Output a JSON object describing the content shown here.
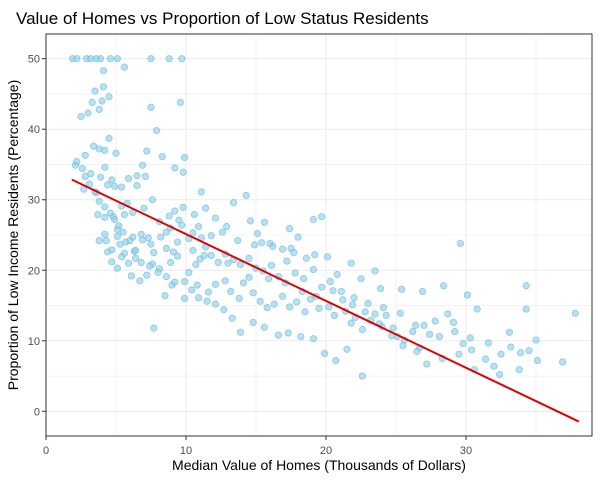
{
  "chart_data": {
    "type": "scatter",
    "title": "Value of Homes vs Proportion of Low Status Residents",
    "xlabel": "Median Value of Homes (Thousands of Dollars)",
    "ylabel": "Proportion of Low Income Residents (Percentage)",
    "xlim": [
      0,
      39
    ],
    "ylim": [
      -3.5,
      53.5
    ],
    "x_ticks": [
      0,
      10,
      20,
      30
    ],
    "y_ticks": [
      0,
      10,
      20,
      30,
      40,
      50
    ],
    "grid": true,
    "legend": "none",
    "colors": {
      "points": "#87CEEB",
      "points_stroke": "#6fb7da",
      "trend": "#dd0000",
      "grid": "#ebebeb",
      "panel_border": "#333333",
      "text": "#000000",
      "tick_text": "#4d4d4d"
    },
    "series": [
      {
        "type": "scatter",
        "points": [
          [
            1.9,
            50
          ],
          [
            2.2,
            50
          ],
          [
            2.9,
            50
          ],
          [
            3.2,
            50
          ],
          [
            3.6,
            50
          ],
          [
            3.9,
            50
          ],
          [
            4.6,
            50
          ],
          [
            5.1,
            50
          ],
          [
            7.5,
            50
          ],
          [
            8.8,
            50
          ],
          [
            9.7,
            50
          ],
          [
            5.6,
            48.8
          ],
          [
            4.1,
            48.3
          ],
          [
            4.1,
            46
          ],
          [
            3.5,
            45.4
          ],
          [
            4.5,
            44.6
          ],
          [
            4.0,
            44
          ],
          [
            3.3,
            43.8
          ],
          [
            3.8,
            42.8
          ],
          [
            3.0,
            42.3
          ],
          [
            2.5,
            41.8
          ],
          [
            7.5,
            43.1
          ],
          [
            9.6,
            43.8
          ],
          [
            7.9,
            39.8
          ],
          [
            4.5,
            38.7
          ],
          [
            3.4,
            37.6
          ],
          [
            3.8,
            37.2
          ],
          [
            4.2,
            37.0
          ],
          [
            5.0,
            36.6
          ],
          [
            7.2,
            36.9
          ],
          [
            2.8,
            36.3
          ],
          [
            5.9,
            33.0
          ],
          [
            6.5,
            33.4
          ],
          [
            6.9,
            34.9
          ],
          [
            7.1,
            33.3
          ],
          [
            8.3,
            36.1
          ],
          [
            9.2,
            34.5
          ],
          [
            9.9,
            36.0
          ],
          [
            9.8,
            33.9
          ],
          [
            6.5,
            32.0
          ],
          [
            5.4,
            31.8
          ],
          [
            4.9,
            31.9
          ],
          [
            4.4,
            32.1
          ],
          [
            4.7,
            32.8
          ],
          [
            3.2,
            33.7
          ],
          [
            2.1,
            34.9
          ],
          [
            3.9,
            33.2
          ],
          [
            4.2,
            34.6
          ],
          [
            5.8,
            29.5
          ],
          [
            3.6,
            31.0
          ],
          [
            2.7,
            31.5
          ],
          [
            3.7,
            27.9
          ],
          [
            4.2,
            27.5
          ],
          [
            4.8,
            27.6
          ],
          [
            5.6,
            27.9
          ],
          [
            6.2,
            28.2
          ],
          [
            7.0,
            28.8
          ],
          [
            7.6,
            30.0
          ],
          [
            8.1,
            26.9
          ],
          [
            8.8,
            27.7
          ],
          [
            9.2,
            28.4
          ],
          [
            9.8,
            28.9
          ],
          [
            9.5,
            27.1
          ],
          [
            8.6,
            25.4
          ],
          [
            5.4,
            29.1
          ],
          [
            5.1,
            25.8
          ],
          [
            4.2,
            25.1
          ],
          [
            3.8,
            24.2
          ],
          [
            4.7,
            22.9
          ],
          [
            5.3,
            23.7
          ],
          [
            5.6,
            22.4
          ],
          [
            6.2,
            24.7
          ],
          [
            6.8,
            25.1
          ],
          [
            7.3,
            24.6
          ],
          [
            7.7,
            22.5
          ],
          [
            8.2,
            24.7
          ],
          [
            8.6,
            23.1
          ],
          [
            9.1,
            22.6
          ],
          [
            9.4,
            24.0
          ],
          [
            10.2,
            24.5
          ],
          [
            10.5,
            22.8
          ],
          [
            11.0,
            21.6
          ],
          [
            11.4,
            23.3
          ],
          [
            11.8,
            22.1
          ],
          [
            12.3,
            21.1
          ],
          [
            12.8,
            22.3
          ],
          [
            13.4,
            21.5
          ],
          [
            13.9,
            20.8
          ],
          [
            14.5,
            21.7
          ],
          [
            15.0,
            20.3
          ],
          [
            15.5,
            19.9
          ],
          [
            16.1,
            20.7
          ],
          [
            16.6,
            19.1
          ],
          [
            17.2,
            21.3
          ],
          [
            17.8,
            19.6
          ],
          [
            18.4,
            18.8
          ],
          [
            19.1,
            20.1
          ],
          [
            19.7,
            17.6
          ],
          [
            20.3,
            18.4
          ],
          [
            21.1,
            17.0
          ],
          [
            22.0,
            16.1
          ],
          [
            23.0,
            15.3
          ],
          [
            24.1,
            14.7
          ],
          [
            25.3,
            13.9
          ],
          [
            26.4,
            12.2
          ],
          [
            27.8,
            12.8
          ],
          [
            29.2,
            11.3
          ],
          [
            30.3,
            10.4
          ],
          [
            31.6,
            9.7
          ],
          [
            33.2,
            9.1
          ],
          [
            34.5,
            8.6
          ],
          [
            11.1,
            31.1
          ],
          [
            11.4,
            28.8
          ],
          [
            12.1,
            27.4
          ],
          [
            13.4,
            29.6
          ],
          [
            14.3,
            30.6
          ],
          [
            14.6,
            27.0
          ],
          [
            15.6,
            26.8
          ],
          [
            17.4,
            25.9
          ],
          [
            19.1,
            27.2
          ],
          [
            19.7,
            27.6
          ],
          [
            18.0,
            24.7
          ],
          [
            17.5,
            23.1
          ],
          [
            16.0,
            23.8
          ],
          [
            14.9,
            23.6
          ],
          [
            13.7,
            24.2
          ],
          [
            12.6,
            25.4
          ],
          [
            10.9,
            26.2
          ],
          [
            10.6,
            27.9
          ],
          [
            9.7,
            26.4
          ],
          [
            9.4,
            22.0
          ],
          [
            8.9,
            21.1
          ],
          [
            8.1,
            20.2
          ],
          [
            7.6,
            20.9
          ],
          [
            7.2,
            19.3
          ],
          [
            6.7,
            18.5
          ],
          [
            6.1,
            19.2
          ],
          [
            5.9,
            21.0
          ],
          [
            6.4,
            21.7
          ],
          [
            8.5,
            16.4
          ],
          [
            9.0,
            17.9
          ],
          [
            9.9,
            18.4
          ],
          [
            10.2,
            19.7
          ],
          [
            10.8,
            17.9
          ],
          [
            11.6,
            16.9
          ],
          [
            12.1,
            18.0
          ],
          [
            12.8,
            18.5
          ],
          [
            13.2,
            17.0
          ],
          [
            13.8,
            16.0
          ],
          [
            14.1,
            18.2
          ],
          [
            14.8,
            16.8
          ],
          [
            15.3,
            15.6
          ],
          [
            15.8,
            14.7
          ],
          [
            16.3,
            15.2
          ],
          [
            16.9,
            16.3
          ],
          [
            17.4,
            14.8
          ],
          [
            17.9,
            15.5
          ],
          [
            18.5,
            14.1
          ],
          [
            18.9,
            15.9
          ],
          [
            19.5,
            14.6
          ],
          [
            20.2,
            14.8
          ],
          [
            20.6,
            13.6
          ],
          [
            21.4,
            14.2
          ],
          [
            21.8,
            12.5
          ],
          [
            22.1,
            13.3
          ],
          [
            22.6,
            11.6
          ],
          [
            23.2,
            12.9
          ],
          [
            23.5,
            13.8
          ],
          [
            24.0,
            12.0
          ],
          [
            24.3,
            13.6
          ],
          [
            24.8,
            11.8
          ],
          [
            25.1,
            10.6
          ],
          [
            25.6,
            10.1
          ],
          [
            26.2,
            11.3
          ],
          [
            26.7,
            9.0
          ],
          [
            27.0,
            12.2
          ],
          [
            27.4,
            10.9
          ],
          [
            28.1,
            10.6
          ],
          [
            28.7,
            13.8
          ],
          [
            29.1,
            12.6
          ],
          [
            29.8,
            9.6
          ],
          [
            30.4,
            8.7
          ],
          [
            30.8,
            14.5
          ],
          [
            31.4,
            7.4
          ],
          [
            32.0,
            6.4
          ],
          [
            32.5,
            8.1
          ],
          [
            33.1,
            11.2
          ],
          [
            33.9,
            8.3
          ],
          [
            34.3,
            14.5
          ],
          [
            35.0,
            10.1
          ],
          [
            36.9,
            7.0
          ],
          [
            37.8,
            13.9
          ],
          [
            34.3,
            17.8
          ],
          [
            30.1,
            16.5
          ],
          [
            29.6,
            23.8
          ],
          [
            28.4,
            17.8
          ],
          [
            26.9,
            17.0
          ],
          [
            25.4,
            17.3
          ],
          [
            23.9,
            17.4
          ],
          [
            23.5,
            19.9
          ],
          [
            22.5,
            18.8
          ],
          [
            21.8,
            21.0
          ],
          [
            20.8,
            19.4
          ],
          [
            20.1,
            21.9
          ],
          [
            19.2,
            22.2
          ],
          [
            18.6,
            21.7
          ],
          [
            17.7,
            22.5
          ],
          [
            16.9,
            23.0
          ],
          [
            16.2,
            23.4
          ],
          [
            15.4,
            23.9
          ],
          [
            15.1,
            25.2
          ],
          [
            12.9,
            26.2
          ],
          [
            11.8,
            24.9
          ],
          [
            11.1,
            24.6
          ],
          [
            10.5,
            25.3
          ],
          [
            8.9,
            26.0
          ],
          [
            7.5,
            23.7
          ],
          [
            6.9,
            24.3
          ],
          [
            6.3,
            22.7
          ],
          [
            5.7,
            24.0
          ],
          [
            5.1,
            24.8
          ],
          [
            5.4,
            21.9
          ],
          [
            5.1,
            20.3
          ],
          [
            4.7,
            21.2
          ],
          [
            4.4,
            22.6
          ],
          [
            4.3,
            24.2
          ],
          [
            7.7,
            11.8
          ],
          [
            10.7,
            20.8
          ],
          [
            11.3,
            22.1
          ],
          [
            13.0,
            21.0
          ],
          [
            14.5,
            19.0
          ],
          [
            15.9,
            18.8
          ],
          [
            17.1,
            18.2
          ],
          [
            18.3,
            17.0
          ],
          [
            19.3,
            16.3
          ],
          [
            20.5,
            17.1
          ],
          [
            21.2,
            15.8
          ],
          [
            21.9,
            15.1
          ],
          [
            22.8,
            14.1
          ],
          [
            23.8,
            12.4
          ],
          [
            24.7,
            10.7
          ],
          [
            25.5,
            9.3
          ],
          [
            26.5,
            8.5
          ],
          [
            27.2,
            6.7
          ],
          [
            28.3,
            7.5
          ],
          [
            29.5,
            8.1
          ],
          [
            30.6,
            5.9
          ],
          [
            32.4,
            5.2
          ],
          [
            33.8,
            5.9
          ],
          [
            35.1,
            7.2
          ],
          [
            22.6,
            5.0
          ],
          [
            21.5,
            8.8
          ],
          [
            20.7,
            7.2
          ],
          [
            19.9,
            8.2
          ],
          [
            19.1,
            10.3
          ],
          [
            18.2,
            10.6
          ],
          [
            17.3,
            11.1
          ],
          [
            16.6,
            10.8
          ],
          [
            15.6,
            11.9
          ],
          [
            14.8,
            12.6
          ],
          [
            13.9,
            11.2
          ],
          [
            13.3,
            13.2
          ],
          [
            12.7,
            14.4
          ],
          [
            12.1,
            15.2
          ],
          [
            11.5,
            15.6
          ],
          [
            10.9,
            16.1
          ],
          [
            10.4,
            17.2
          ],
          [
            9.9,
            16.0
          ],
          [
            9.2,
            18.3
          ],
          [
            8.6,
            19.1
          ],
          [
            8.0,
            19.7
          ],
          [
            7.4,
            20.6
          ],
          [
            6.8,
            21.1
          ],
          [
            6.4,
            22.8
          ],
          [
            6.0,
            24.2
          ],
          [
            5.5,
            25.4
          ],
          [
            5.2,
            26.3
          ],
          [
            4.9,
            27.2
          ],
          [
            4.6,
            28.1
          ],
          [
            4.2,
            29.0
          ],
          [
            3.8,
            29.8
          ],
          [
            3.5,
            31.1
          ],
          [
            3.1,
            32.2
          ],
          [
            2.8,
            33.3
          ],
          [
            2.6,
            34.4
          ],
          [
            2.2,
            35.4
          ]
        ]
      },
      {
        "type": "line",
        "points": [
          [
            1.9,
            32.8
          ],
          [
            38.0,
            -1.4
          ]
        ]
      }
    ]
  }
}
